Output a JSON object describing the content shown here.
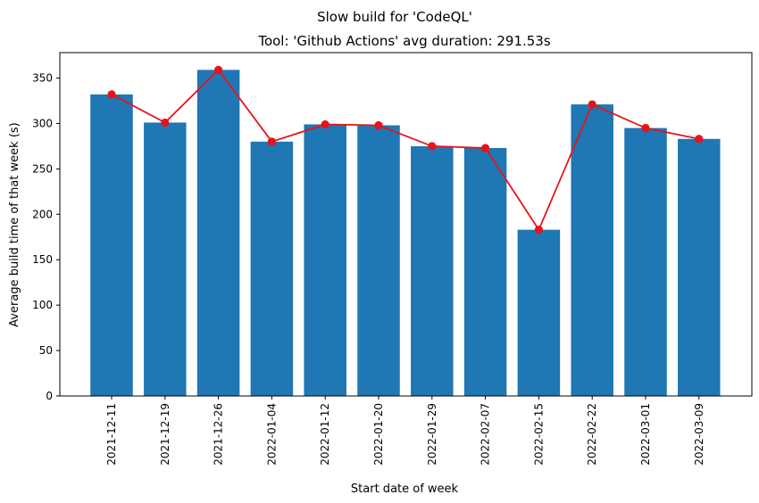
{
  "chart_data": {
    "type": "bar",
    "suptitle": "Slow build for 'CodeQL'",
    "title": "Tool: 'Github Actions' avg duration: 291.53s",
    "xlabel": "Start date of week",
    "ylabel": "Average build time of that week (s)",
    "categories": [
      "2021-12-11",
      "2021-12-19",
      "2021-12-26",
      "2022-01-04",
      "2022-01-12",
      "2022-01-20",
      "2022-01-29",
      "2022-02-07",
      "2022-02-15",
      "2022-02-22",
      "2022-03-01",
      "2022-03-09"
    ],
    "values": [
      332,
      301,
      359,
      280,
      299,
      298,
      275,
      273,
      183,
      321,
      295,
      283
    ],
    "line_values": [
      332,
      301,
      359,
      280,
      299,
      298,
      275,
      273,
      183,
      321,
      295,
      283
    ],
    "ylim": [
      0,
      378
    ],
    "yticks": [
      0,
      50,
      100,
      150,
      200,
      250,
      300,
      350
    ],
    "bar_color": "#1f77b4",
    "line_color": "#e8131a",
    "grid": false
  }
}
